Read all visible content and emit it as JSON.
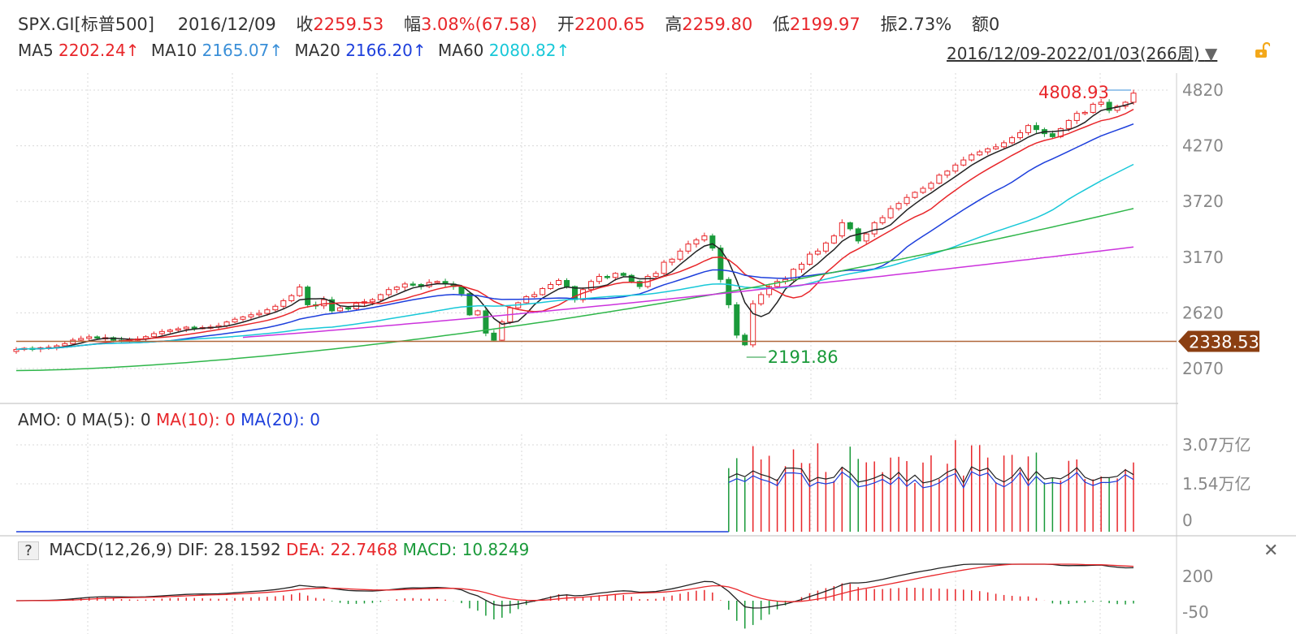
{
  "header": {
    "symbol": "SPX.GI[标普500]",
    "date": "2016/12/09",
    "close_label": "收",
    "close": "2259.53",
    "change_label": "幅",
    "change": "3.08%(67.58)",
    "open_label": "开",
    "open": "2200.65",
    "high_label": "高",
    "high": "2259.80",
    "low_label": "低",
    "low": "2199.97",
    "amp_label": "振",
    "amp": "2.73%",
    "amount_label": "额",
    "amount": "0"
  },
  "ma_line": {
    "ma5_label": "MA5",
    "ma5": "2202.24↑",
    "ma10_label": "MA10",
    "ma10": "2165.07↑",
    "ma20_label": "MA20",
    "ma20": "2166.20↑",
    "ma60_label": "MA60",
    "ma60": "2080.82↑",
    "range": "2016/12/09-2022/01/03(266周)"
  },
  "colors": {
    "ma5": "#222222",
    "ma10": "#e8262a",
    "ma20": "#1d3fdc",
    "ma60": "#18c8d8",
    "ma120": "#2fb64a",
    "ma250": "#cc33dd",
    "up": "#e8262a",
    "down": "#1a9a3a",
    "current_line": "#b0673a",
    "current_tag": "#8b3f12"
  },
  "amo_title": {
    "amo_label": "AMO: 0",
    "ma5_label": "MA(5): 0",
    "ma10_label": "MA(10): 0",
    "ma20_label": "MA(20): 0"
  },
  "macd_title": {
    "help": "?",
    "macd_label": "MACD(12,26,9)",
    "dif_label": "DIF: 28.1592",
    "dea_label": "DEA: 22.7468",
    "macd_value": "MACD: 10.8249",
    "close_icon": "close-icon"
  },
  "chart_data": {
    "type": "candlestick",
    "title": "SPX.GI[标普500]",
    "period": "weekly",
    "price_axis": {
      "ticks": [
        4820,
        4270,
        3720,
        3170,
        2620,
        2070
      ],
      "ylim": [
        1800,
        5000
      ]
    },
    "annotations": {
      "max_label": "4808.93",
      "min_label": "2191.86",
      "current_price_tag": "2338.53"
    },
    "closes": [
      2259,
      2270,
      2263,
      2275,
      2280,
      2295,
      2316,
      2351,
      2367,
      2383,
      2372,
      2375,
      2350,
      2344,
      2356,
      2362,
      2385,
      2415,
      2436,
      2450,
      2463,
      2479,
      2472,
      2475,
      2480,
      2493,
      2530,
      2557,
      2580,
      2601,
      2615,
      2650,
      2685,
      2740,
      2790,
      2875,
      2700,
      2690,
      2750,
      2640,
      2670,
      2660,
      2715,
      2730,
      2750,
      2800,
      2850,
      2874,
      2905,
      2900,
      2880,
      2920,
      2930,
      2905,
      2880,
      2810,
      2600,
      2640,
      2420,
      2350,
      2530,
      2670,
      2720,
      2780,
      2800,
      2860,
      2900,
      2940,
      2880,
      2750,
      2850,
      2930,
      2980,
      2970,
      3010,
      2990,
      2930,
      2880,
      2980,
      3010,
      3120,
      3150,
      3230,
      3300,
      3340,
      3380,
      3260,
      2950,
      2700,
      2400,
      2304,
      2710,
      2800,
      2880,
      2930,
      2950,
      3050,
      3100,
      3200,
      3230,
      3310,
      3380,
      3510,
      3450,
      3330,
      3400,
      3510,
      3560,
      3650,
      3700,
      3760,
      3810,
      3850,
      3900,
      3980,
      4020,
      4080,
      4130,
      4180,
      4210,
      4240,
      4260,
      4300,
      4350,
      4400,
      4470,
      4430,
      4390,
      4360,
      4440,
      4520,
      4590,
      4600,
      4680,
      4700,
      4620,
      4660,
      4700,
      4790
    ],
    "ma60_end": 4210,
    "ma120_end": 3650,
    "ma250_end": 3270,
    "amo_axis": {
      "ticks": [
        "3.07万亿",
        "1.54万亿",
        "0"
      ]
    },
    "macd_axis": {
      "ticks": [
        "200",
        "-50"
      ]
    }
  }
}
